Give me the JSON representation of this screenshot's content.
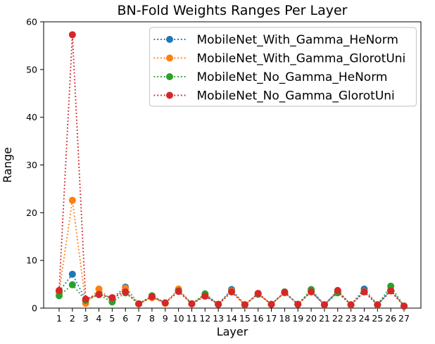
{
  "figure": {
    "background": "#ffffff",
    "title": "BN-Fold Weights Ranges Per Layer"
  },
  "chart_data": {
    "type": "line",
    "title": "BN-Fold Weights Ranges Per Layer",
    "xlabel": "Layer",
    "ylabel": "Range",
    "x": [
      1,
      2,
      3,
      4,
      5,
      6,
      7,
      8,
      9,
      10,
      11,
      12,
      13,
      14,
      15,
      16,
      17,
      18,
      19,
      20,
      21,
      22,
      23,
      24,
      25,
      26,
      27
    ],
    "xlim": [
      -0.3,
      27.3
    ],
    "ylim": [
      0,
      60
    ],
    "yticks": [
      0,
      10,
      20,
      30,
      40,
      50,
      60
    ],
    "grid": false,
    "line_style": "dotted",
    "marker": "circle",
    "legend_position": "upper right",
    "legend_border_color": "#cccccc",
    "series": [
      {
        "name": "MobileNet_With_Gamma_HeNorm",
        "color": "#1f77b4",
        "values": [
          3.5,
          7.1,
          1.8,
          2.9,
          2.1,
          4.4,
          0.9,
          2.4,
          1.1,
          3.9,
          0.9,
          2.7,
          0.8,
          3.9,
          0.7,
          2.9,
          0.8,
          3.3,
          0.8,
          3.5,
          0.7,
          3.5,
          0.7,
          4.0,
          0.7,
          3.8,
          0.4
        ]
      },
      {
        "name": "MobileNet_With_Gamma_GlorotUni",
        "color": "#ff7f0e",
        "values": [
          3.4,
          22.6,
          1.0,
          4.0,
          1.6,
          4.2,
          0.9,
          2.2,
          1.0,
          4.0,
          0.9,
          2.9,
          0.8,
          3.6,
          0.7,
          3.0,
          0.8,
          3.2,
          0.8,
          3.4,
          0.7,
          3.5,
          0.7,
          3.5,
          0.7,
          3.7,
          0.4
        ]
      },
      {
        "name": "MobileNet_No_Gamma_HeNorm",
        "color": "#2ca02c",
        "values": [
          2.6,
          4.9,
          1.6,
          2.8,
          1.3,
          3.2,
          0.9,
          2.6,
          1.1,
          3.6,
          0.9,
          3.0,
          0.8,
          3.4,
          0.7,
          3.0,
          0.8,
          3.4,
          0.8,
          3.9,
          0.7,
          3.2,
          0.7,
          3.4,
          0.7,
          4.6,
          0.4
        ]
      },
      {
        "name": "MobileNet_No_Gamma_GlorotUni",
        "color": "#d62728",
        "values": [
          3.7,
          57.3,
          1.9,
          2.9,
          2.2,
          3.4,
          0.9,
          2.4,
          1.1,
          3.5,
          0.9,
          2.5,
          0.8,
          3.4,
          0.7,
          3.1,
          0.8,
          3.3,
          0.8,
          3.4,
          0.7,
          3.7,
          0.7,
          3.4,
          0.7,
          3.6,
          0.45
        ]
      }
    ]
  }
}
